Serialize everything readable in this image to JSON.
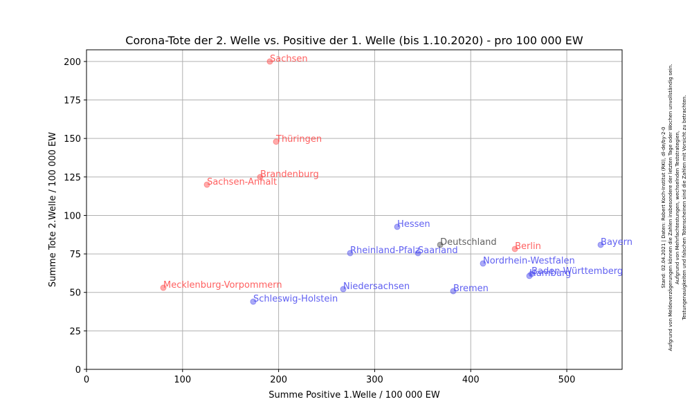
{
  "chart_data": {
    "type": "scatter",
    "title": "Corona-Tote der 2. Welle vs. Positive der 1. Welle (bis 1.10.2020) - pro 100 000 EW",
    "x_label": "Summe Positive 1.Welle / 100 000  EW",
    "y_label": "Summe Tote 2.Welle / 100 000 EW",
    "labels": [
      "Sachsen",
      "Thüringen",
      "Brandenburg",
      "Sachsen-Anhalt",
      "Mecklenburg-Vorpommern",
      "Schleswig-Holstein",
      "Niedersachsen",
      "Rheinland-Pfalz",
      "Hessen",
      "Saarland",
      "Deutschland",
      "Bremen",
      "Berlin",
      "Nordrhein-Westfalen",
      "Hamburg",
      "Baden-Württemberg",
      "Bayern"
    ],
    "x": [
      190.9,
      197.4,
      180.8,
      125.4,
      80.0,
      173.6,
      267.3,
      274.5,
      323.5,
      345.1,
      368.2,
      381.8,
      446.0,
      412.8,
      461.1,
      463.3,
      535.3
    ],
    "y": [
      200.0,
      147.9,
      124.9,
      120.0,
      53.0,
      44.0,
      52.1,
      75.5,
      92.6,
      75.5,
      80.9,
      50.8,
      78.2,
      68.8,
      60.7,
      62.0,
      80.9
    ],
    "colors": [
      "#ff4444",
      "#ff4444",
      "#ff4444",
      "#ff4444",
      "#ff4444",
      "#4444ee",
      "#4444ee",
      "#4444ee",
      "#4444ee",
      "#4444ee",
      "#444444",
      "#4444ee",
      "#ff4444",
      "#4444ee",
      "#4444ee",
      "#4444ee",
      "#4444ee"
    ],
    "xlim": [
      0,
      557.6
    ],
    "ylim": [
      0,
      207.6
    ],
    "xticks": [
      0,
      100,
      200,
      300,
      400,
      500
    ],
    "yticks": [
      0,
      25,
      50,
      75,
      100,
      125,
      150,
      175,
      200
    ],
    "grid": true,
    "notes": [
      "Stand: 02.04.2021 | Daten: Robert Koch-Institut (RKI), dl-de/by-2-0",
      "Aufgrund von Meldeverzögerungen können die Zahlen insbesondere der letzten Tage oder Wochen unvollständig sein.",
      "Aufgrund von Mehrfachtestungen, wechselnden Teststrategien,",
      "Testungenauigkeiten und falschen Totenscheinen sind die Zahlen mit Vorsicht zu betrachten."
    ]
  }
}
